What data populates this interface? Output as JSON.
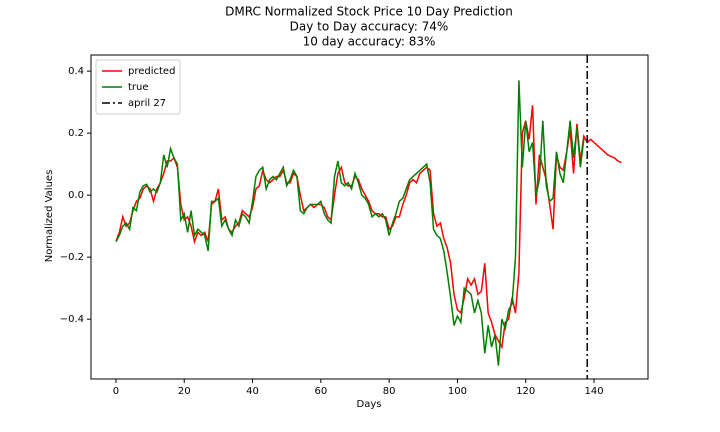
{
  "chart_data": {
    "type": "line",
    "title": "DMRC Normalized Stock Price 10 Day Prediction",
    "subtitle": [
      "Day to Day accuracy: 74%",
      "10 day accuracy: 83%"
    ],
    "x_label": "Days",
    "y_label": "Normalized Values",
    "xlim": [
      -7.3,
      155.8
    ],
    "ylim": [
      -0.593,
      0.452
    ],
    "xticks": [
      0,
      20,
      40,
      60,
      80,
      100,
      120,
      140
    ],
    "yticks": [
      {
        "value": -0.4,
        "label": "−0.4"
      },
      {
        "value": -0.2,
        "label": "−0.2"
      },
      {
        "value": 0,
        "label": "0.0"
      },
      0.2,
      0.4
    ],
    "legend": "upper left",
    "series": [
      {
        "name": "predicted",
        "color": "#ff0000",
        "values": [
          -0.15,
          -0.12,
          -0.07,
          -0.1,
          -0.09,
          -0.05,
          -0.02,
          -0.01,
          0.02,
          0.03,
          0.02,
          -0.02,
          0.02,
          0.04,
          0.07,
          0.11,
          0.11,
          0.12,
          0.09,
          -0.03,
          -0.08,
          -0.07,
          -0.1,
          -0.15,
          -0.12,
          -0.13,
          -0.12,
          -0.15,
          -0.03,
          -0.02,
          0.02,
          -0.08,
          -0.07,
          -0.11,
          -0.12,
          -0.1,
          -0.09,
          -0.05,
          -0.06,
          -0.07,
          -0.04,
          0.02,
          0.03,
          0.08,
          0.05,
          0.04,
          0.05,
          0.06,
          0.06,
          0.08,
          0.04,
          0.04,
          0.07,
          0.06,
          0.0,
          -0.05,
          -0.04,
          -0.03,
          -0.04,
          -0.03,
          -0.03,
          -0.04,
          -0.07,
          -0.08,
          0.0,
          0.07,
          0.09,
          0.04,
          0.03,
          0.03,
          0.06,
          0.05,
          0.02,
          0.0,
          -0.02,
          -0.05,
          -0.06,
          -0.06,
          -0.07,
          -0.07,
          -0.11,
          -0.1,
          -0.07,
          -0.07,
          -0.03,
          0.0,
          0.04,
          0.05,
          0.04,
          0.07,
          0.08,
          0.09,
          0.08,
          -0.06,
          -0.1,
          -0.09,
          -0.14,
          -0.17,
          -0.22,
          -0.32,
          -0.37,
          -0.38,
          -0.33,
          -0.27,
          -0.29,
          -0.27,
          -0.32,
          -0.31,
          -0.22,
          -0.38,
          -0.41,
          -0.45,
          -0.47,
          -0.49,
          -0.41,
          -0.4,
          -0.33,
          -0.38,
          -0.25,
          0.2,
          0.24,
          0.18,
          0.29,
          -0.03,
          0.13,
          0.09,
          0.05,
          -0.03,
          -0.11,
          0.13,
          0.09,
          0.08,
          0.14,
          0.21,
          0.07,
          0.23,
          0.11,
          0.19,
          0.17,
          0.18,
          0.17,
          0.16,
          0.15,
          0.14,
          0.13,
          0.125,
          0.12,
          0.11,
          0.105
        ]
      },
      {
        "name": "true",
        "color": "#008000",
        "values": [
          -0.15,
          -0.13,
          -0.1,
          -0.09,
          -0.11,
          -0.04,
          -0.05,
          0.01,
          0.03,
          0.035,
          0.01,
          0.02,
          0.01,
          0.04,
          0.13,
          0.09,
          0.15,
          0.12,
          0.1,
          -0.08,
          -0.06,
          -0.12,
          -0.05,
          -0.13,
          -0.11,
          -0.12,
          -0.13,
          -0.18,
          -0.02,
          -0.02,
          -0.01,
          -0.1,
          -0.08,
          -0.11,
          -0.13,
          -0.08,
          -0.1,
          -0.06,
          -0.07,
          -0.09,
          -0.02,
          0.06,
          0.08,
          0.09,
          0.02,
          0.05,
          0.06,
          0.05,
          0.07,
          0.09,
          0.03,
          0.05,
          0.08,
          0.06,
          -0.05,
          -0.06,
          -0.04,
          -0.03,
          -0.03,
          -0.03,
          -0.02,
          -0.06,
          -0.08,
          -0.09,
          0.06,
          0.11,
          0.04,
          0.03,
          0.04,
          0.02,
          0.07,
          0.04,
          0.0,
          -0.01,
          -0.03,
          -0.07,
          -0.06,
          -0.07,
          -0.06,
          -0.08,
          -0.13,
          -0.09,
          -0.06,
          -0.02,
          -0.01,
          0.02,
          0.05,
          0.06,
          0.07,
          0.08,
          0.09,
          0.1,
          0.04,
          -0.11,
          -0.13,
          -0.14,
          -0.18,
          -0.25,
          -0.33,
          -0.42,
          -0.39,
          -0.41,
          -0.3,
          -0.31,
          -0.32,
          -0.38,
          -0.34,
          -0.38,
          -0.51,
          -0.42,
          -0.49,
          -0.45,
          -0.55,
          -0.4,
          -0.43,
          -0.37,
          -0.35,
          -0.2,
          0.37,
          0.09,
          0.24,
          0.14,
          0.17,
          0.0,
          0.05,
          0.24,
          0.03,
          -0.02,
          -0.01,
          0.14,
          0.07,
          0.04,
          0.14,
          0.24,
          0.12,
          0.22,
          0.09,
          0.18
        ]
      }
    ],
    "vlines": [
      {
        "name": "april 27",
        "x": 138,
        "color": "#000000"
      }
    ]
  }
}
